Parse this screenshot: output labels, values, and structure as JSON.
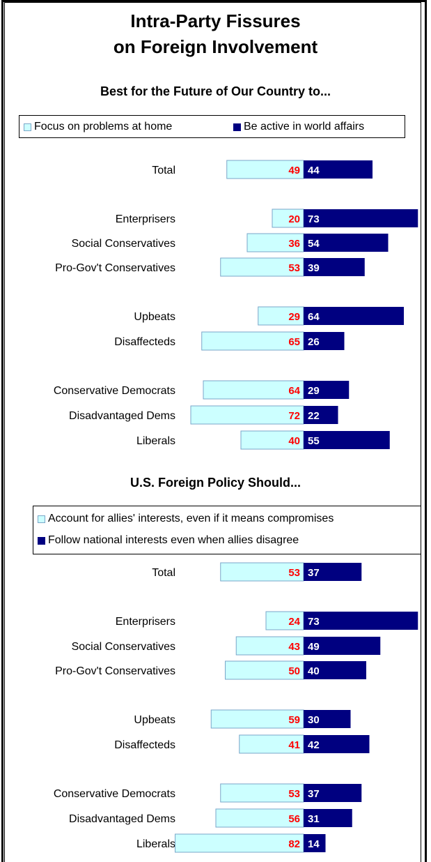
{
  "title_line1": "Intra-Party Fissures",
  "title_line2": "on Foreign Involvement",
  "colors": {
    "left_series": "#ccffff",
    "right_series": "#000080",
    "left_label": "#ff0000",
    "right_label": "#ffffff"
  },
  "chart_data": [
    {
      "type": "bar",
      "title": "Best for the Future of Our Country to...",
      "series": [
        {
          "name": "Focus on problems at home",
          "values": [
            49,
            20,
            36,
            53,
            29,
            65,
            64,
            72,
            40
          ]
        },
        {
          "name": "Be active in world affairs",
          "values": [
            44,
            73,
            54,
            39,
            64,
            26,
            29,
            22,
            55
          ]
        }
      ],
      "categories": [
        "Total",
        "Enterprisers",
        "Social Conservatives",
        "Pro-Gov't Conservatives",
        "Upbeats",
        "Disaffecteds",
        "Conservative Democrats",
        "Disadvantaged Dems",
        "Liberals"
      ],
      "groups": [
        [
          0
        ],
        [
          1,
          2,
          3
        ],
        [
          4,
          5
        ],
        [
          6,
          7,
          8
        ]
      ],
      "legend": "top"
    },
    {
      "type": "bar",
      "title": "U.S. Foreign Policy Should...",
      "series": [
        {
          "name": "Account for allies' interests, even if it means compromises",
          "values": [
            53,
            24,
            43,
            50,
            59,
            41,
            53,
            56,
            82
          ]
        },
        {
          "name": "Follow national interests even when allies disagree",
          "values": [
            37,
            73,
            49,
            40,
            30,
            42,
            37,
            31,
            14
          ]
        }
      ],
      "categories": [
        "Total",
        "Enterprisers",
        "Social Conservatives",
        "Pro-Gov't Conservatives",
        "Upbeats",
        "Disaffecteds",
        "Conservative Democrats",
        "Disadvantaged Dems",
        "Liberals"
      ],
      "groups": [
        [
          0
        ],
        [
          1,
          2,
          3
        ],
        [
          4,
          5
        ],
        [
          6,
          7,
          8
        ]
      ],
      "legend": "top"
    }
  ]
}
